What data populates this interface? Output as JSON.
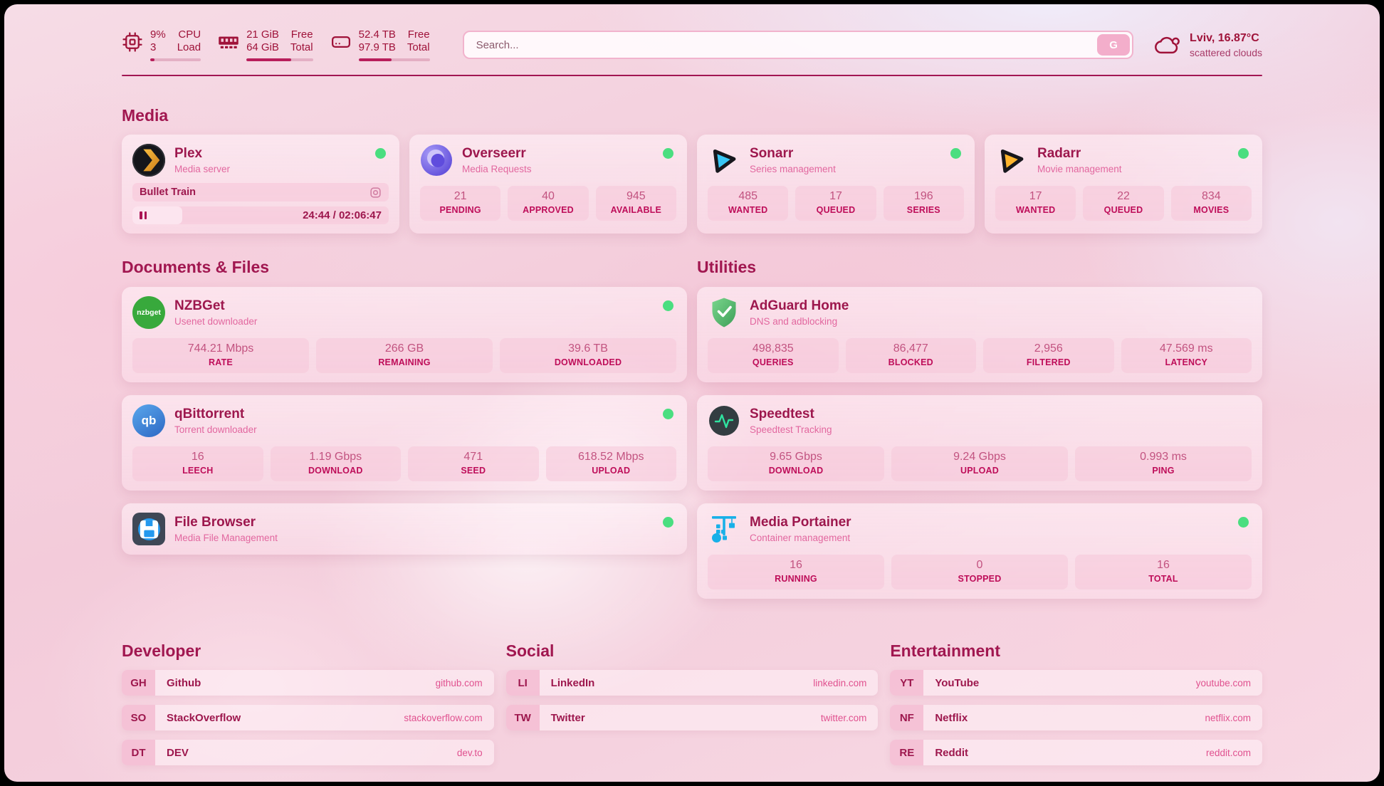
{
  "top_bar": {
    "cpu": {
      "values": [
        "9%",
        "3"
      ],
      "labels": [
        "CPU",
        "Load"
      ],
      "progress_pct": 9
    },
    "memory": {
      "values": [
        "21 GiB",
        "64 GiB"
      ],
      "labels": [
        "Free",
        "Total"
      ],
      "progress_pct": 67
    },
    "disk": {
      "values": [
        "52.4 TB",
        "97.9 TB"
      ],
      "labels": [
        "Free",
        "Total"
      ],
      "progress_pct": 46
    },
    "search": {
      "placeholder": "Search...",
      "button_label": "G"
    },
    "weather": {
      "location_temp": "Lviv, 16.87°C",
      "condition": "scattered clouds"
    }
  },
  "sections": {
    "media": {
      "title": "Media",
      "plex": {
        "name": "Plex",
        "description": "Media server",
        "status": "online",
        "now_playing": {
          "title": "Bullet Train",
          "time": "24:44 / 02:06:47",
          "progress_pct": 19.5
        }
      },
      "overseerr": {
        "name": "Overseerr",
        "description": "Media Requests",
        "status": "online",
        "stats": [
          {
            "value": "21",
            "label": "PENDING"
          },
          {
            "value": "40",
            "label": "APPROVED"
          },
          {
            "value": "945",
            "label": "AVAILABLE"
          }
        ]
      },
      "sonarr": {
        "name": "Sonarr",
        "description": "Series management",
        "status": "online",
        "stats": [
          {
            "value": "485",
            "label": "WANTED"
          },
          {
            "value": "17",
            "label": "QUEUED"
          },
          {
            "value": "196",
            "label": "SERIES"
          }
        ]
      },
      "radarr": {
        "name": "Radarr",
        "description": "Movie management",
        "status": "online",
        "stats": [
          {
            "value": "17",
            "label": "WANTED"
          },
          {
            "value": "22",
            "label": "QUEUED"
          },
          {
            "value": "834",
            "label": "MOVIES"
          }
        ]
      }
    },
    "documents": {
      "title": "Documents & Files",
      "nzbget": {
        "name": "NZBGet",
        "description": "Usenet downloader",
        "status": "online",
        "icon_text": "nzbget",
        "stats": [
          {
            "value": "744.21 Mbps",
            "label": "RATE"
          },
          {
            "value": "266 GB",
            "label": "REMAINING"
          },
          {
            "value": "39.6 TB",
            "label": "DOWNLOADED"
          }
        ]
      },
      "qbittorrent": {
        "name": "qBittorrent",
        "description": "Torrent downloader",
        "status": "online",
        "icon_text": "qb",
        "stats": [
          {
            "value": "16",
            "label": "LEECH"
          },
          {
            "value": "1.19 Gbps",
            "label": "DOWNLOAD"
          },
          {
            "value": "471",
            "label": "SEED"
          },
          {
            "value": "618.52 Mbps",
            "label": "UPLOAD"
          }
        ]
      },
      "filebrowser": {
        "name": "File Browser",
        "description": "Media File Management",
        "status": "online"
      }
    },
    "utilities": {
      "title": "Utilities",
      "adguard": {
        "name": "AdGuard Home",
        "description": "DNS and adblocking",
        "stats": [
          {
            "value": "498,835",
            "label": "QUERIES"
          },
          {
            "value": "86,477",
            "label": "BLOCKED"
          },
          {
            "value": "2,956",
            "label": "FILTERED"
          },
          {
            "value": "47.569 ms",
            "label": "LATENCY"
          }
        ]
      },
      "speedtest": {
        "name": "Speedtest",
        "description": "Speedtest Tracking",
        "stats": [
          {
            "value": "9.65 Gbps",
            "label": "DOWNLOAD"
          },
          {
            "value": "9.24 Gbps",
            "label": "UPLOAD"
          },
          {
            "value": "0.993 ms",
            "label": "PING"
          }
        ]
      },
      "portainer": {
        "name": "Media Portainer",
        "description": "Container management",
        "status": "online",
        "stats": [
          {
            "value": "16",
            "label": "RUNNING"
          },
          {
            "value": "0",
            "label": "STOPPED"
          },
          {
            "value": "16",
            "label": "TOTAL"
          }
        ]
      }
    },
    "developer": {
      "title": "Developer",
      "items": [
        {
          "abbr": "GH",
          "name": "Github",
          "href": "github.com"
        },
        {
          "abbr": "SO",
          "name": "StackOverflow",
          "href": "stackoverflow.com"
        },
        {
          "abbr": "DT",
          "name": "DEV",
          "href": "dev.to"
        }
      ]
    },
    "social": {
      "title": "Social",
      "items": [
        {
          "abbr": "LI",
          "name": "LinkedIn",
          "href": "linkedin.com"
        },
        {
          "abbr": "TW",
          "name": "Twitter",
          "href": "twitter.com"
        }
      ]
    },
    "entertainment": {
      "title": "Entertainment",
      "items": [
        {
          "abbr": "YT",
          "name": "YouTube",
          "href": "youtube.com"
        },
        {
          "abbr": "NF",
          "name": "Netflix",
          "href": "netflix.com"
        },
        {
          "abbr": "RE",
          "name": "Reddit",
          "href": "reddit.com"
        }
      ]
    }
  },
  "colors": {
    "accent": "#9d174d",
    "online_dot": "#4ade80",
    "plex_gold": "#e5a00d",
    "sonarr_blue": "#38c6f4",
    "radarr_yellow": "#ffb52e",
    "nzbget_green": "#38a93c",
    "qbittorrent_blue": "#3c7edb",
    "filebrowser_blue": "#2499ee",
    "adguard_green": "#4caf6e",
    "speedtest_pulse": "#2fe3a0",
    "portainer_blue": "#18b0e8"
  }
}
